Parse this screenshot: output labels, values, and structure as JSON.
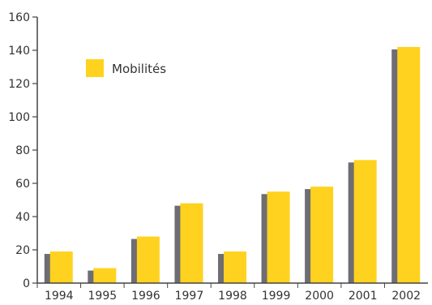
{
  "chart_data": {
    "type": "bar",
    "title": "",
    "xlabel": "",
    "ylabel": "",
    "ylim": [
      0,
      160
    ],
    "yticks": [
      "0",
      "20",
      "40",
      "60",
      "80",
      "100",
      "120",
      "140",
      "160"
    ],
    "categories": [
      "1994",
      "1995",
      "1996",
      "1997",
      "1998",
      "1999",
      "2000",
      "2001",
      "2002"
    ],
    "series": [
      {
        "name": "Mobilités",
        "values": [
          19,
          9,
          28,
          48,
          19,
          55,
          58,
          74,
          142
        ]
      }
    ],
    "legend": {
      "position": "top-left"
    },
    "grid": false
  },
  "colors": {
    "bar": "#ffd21f",
    "bar_shadow": "#6d6d73",
    "axis": "#444444",
    "text": "#333333"
  }
}
